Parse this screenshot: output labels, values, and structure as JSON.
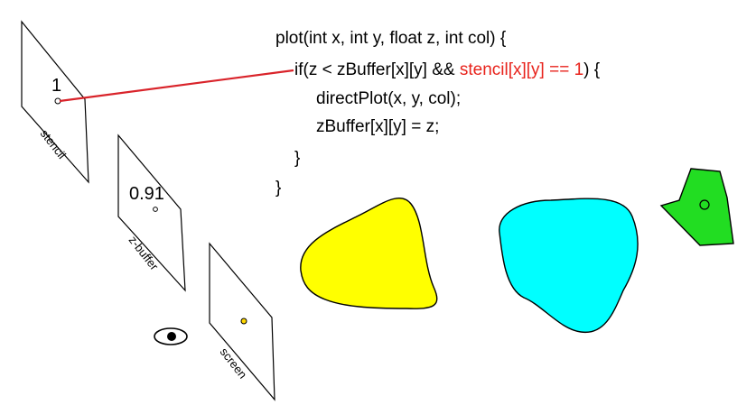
{
  "planes": {
    "stencil": {
      "label": "stencil",
      "value": "1"
    },
    "zbuffer": {
      "label": "z-buffer",
      "value": "0.91"
    },
    "screen": {
      "label": "screen"
    }
  },
  "code": {
    "line1": "plot(int x, int y, float z, int col) {",
    "line2_pre": "if(z < zBuffer[x][y] && ",
    "line2_hl": "stencil[x][y] == 1",
    "line2_post": ") {",
    "line3": "directPlot(x, y, col);",
    "line4": "zBuffer[x][y] = z;",
    "line5": "}",
    "line6": "}"
  },
  "colors": {
    "highlight": "#e8231c",
    "pointer_line": "#d9232a",
    "yellow_shape": "#ffff00",
    "cyan_shape": "#00ffff",
    "green_shape": "#22dd22",
    "screen_dot": "#ffd700"
  }
}
